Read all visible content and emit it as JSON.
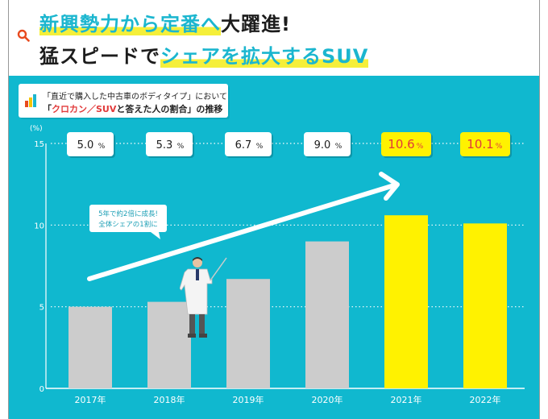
{
  "header": {
    "title_line1_a": "新興勢力から定番へ",
    "title_line1_b": "大躍進!",
    "title_line2_a": "猛スピードで",
    "title_line2_b": "シェアを拡大するSUV"
  },
  "subtitle": {
    "line1": "「直近で購入した中古車のボディタイプ」において",
    "line2_a": "「",
    "line2_b": "クロカン／SUV",
    "line2_c": "と答えた人の割合」の推移"
  },
  "callout": {
    "line1": "5年で約2倍に成長!",
    "line2": "全体シェアの1割に"
  },
  "chart_data": {
    "type": "bar",
    "ylabel": "(%)",
    "ylim": [
      0,
      15
    ],
    "yticks": [
      0,
      5,
      10,
      15
    ],
    "grid": true,
    "categories": [
      "2017年",
      "2018年",
      "2019年",
      "2020年",
      "2021年",
      "2022年"
    ],
    "values": [
      5.0,
      5.3,
      6.7,
      9.0,
      10.6,
      10.1
    ],
    "value_labels": [
      "5.0",
      "5.3",
      "6.7",
      "9.0",
      "10.6",
      "10.1"
    ],
    "value_unit": "%",
    "highlighted": [
      false,
      false,
      false,
      false,
      true,
      true
    ],
    "colors": {
      "bar_normal": "#cccccc",
      "bar_highlight": "#fff200",
      "background": "#10b8cf",
      "label_box_normal": "#ffffff",
      "label_box_highlight": "#fff200",
      "label_text_highlight": "#e13a3a"
    }
  }
}
